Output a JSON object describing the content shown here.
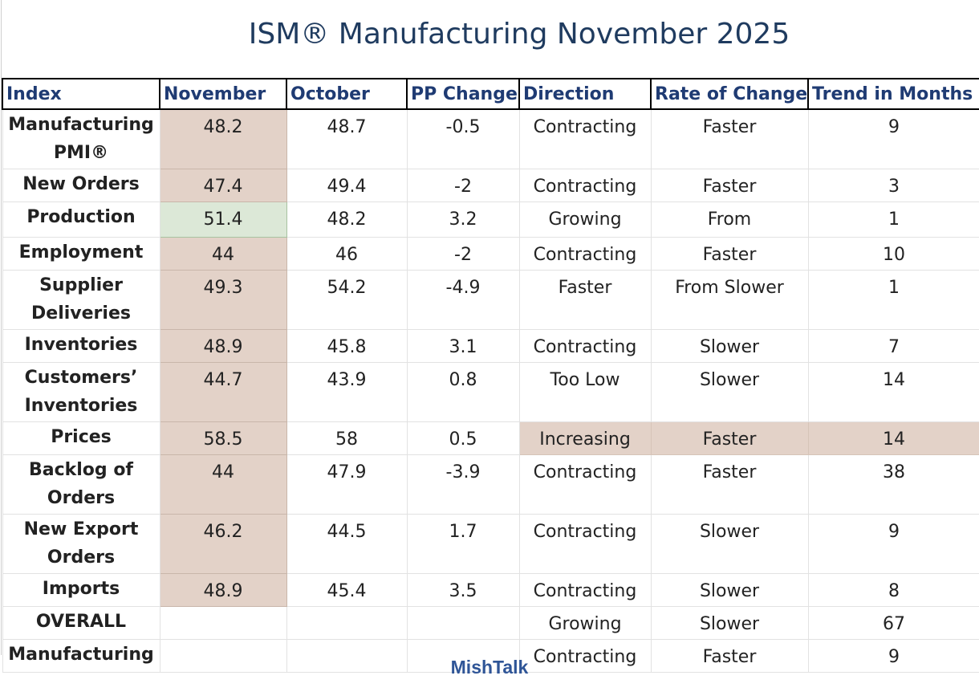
{
  "title": "ISM® Manufacturing November 2025",
  "footer": "MishTalk",
  "colors": {
    "title": "#1f3b5f",
    "header_text": "#1f3b73",
    "contracting_fill": "#e3d2c8",
    "growing_fill": "#dce8d7",
    "footer": "#2f5597"
  },
  "chart_data": {
    "type": "table",
    "title": "ISM® Manufacturing November 2025",
    "columns": [
      "Index",
      "November",
      "October",
      "PP Change",
      "Direction",
      "Rate of Change",
      "Trend in Months"
    ],
    "rows": [
      {
        "index": "Manufacturing PMI®",
        "november": "48.2",
        "october": "48.7",
        "pp_change": "-0.5",
        "direction": "Contracting",
        "rate": "Faster",
        "trend": "9"
      },
      {
        "index": "New Orders",
        "november": "47.4",
        "october": "49.4",
        "pp_change": "-2",
        "direction": "Contracting",
        "rate": "Faster",
        "trend": "3"
      },
      {
        "index": "Production",
        "november": "51.4",
        "october": "48.2",
        "pp_change": "3.2",
        "direction": "Growing",
        "rate": "From",
        "trend": "1"
      },
      {
        "index": "Employment",
        "november": "44",
        "october": "46",
        "pp_change": "-2",
        "direction": "Contracting",
        "rate": "Faster",
        "trend": "10"
      },
      {
        "index": "Supplier Deliveries",
        "november": "49.3",
        "october": "54.2",
        "pp_change": "-4.9",
        "direction": "Faster",
        "rate": "From Slower",
        "trend": "1"
      },
      {
        "index": "Inventories",
        "november": "48.9",
        "october": "45.8",
        "pp_change": "3.1",
        "direction": "Contracting",
        "rate": "Slower",
        "trend": "7"
      },
      {
        "index": "Customers’ Inventories",
        "november": "44.7",
        "october": "43.9",
        "pp_change": "0.8",
        "direction": "Too Low",
        "rate": "Slower",
        "trend": "14"
      },
      {
        "index": "Prices",
        "november": "58.5",
        "october": "58",
        "pp_change": "0.5",
        "direction": "Increasing",
        "rate": "Faster",
        "trend": "14"
      },
      {
        "index": "Backlog of Orders",
        "november": "44",
        "october": "47.9",
        "pp_change": "-3.9",
        "direction": "Contracting",
        "rate": "Faster",
        "trend": "38"
      },
      {
        "index": "New Export Orders",
        "november": "46.2",
        "october": "44.5",
        "pp_change": "1.7",
        "direction": "Contracting",
        "rate": "Slower",
        "trend": "9"
      },
      {
        "index": "Imports",
        "november": "48.9",
        "october": "45.4",
        "pp_change": "3.5",
        "direction": "Contracting",
        "rate": "Slower",
        "trend": "8"
      },
      {
        "index": "OVERALL",
        "november": "",
        "october": "",
        "pp_change": "",
        "direction": "Growing",
        "rate": "Slower",
        "trend": "67"
      },
      {
        "index": "Manufacturing",
        "november": "",
        "october": "",
        "pp_change": "",
        "direction": "Contracting",
        "rate": "Faster",
        "trend": "9"
      }
    ]
  }
}
